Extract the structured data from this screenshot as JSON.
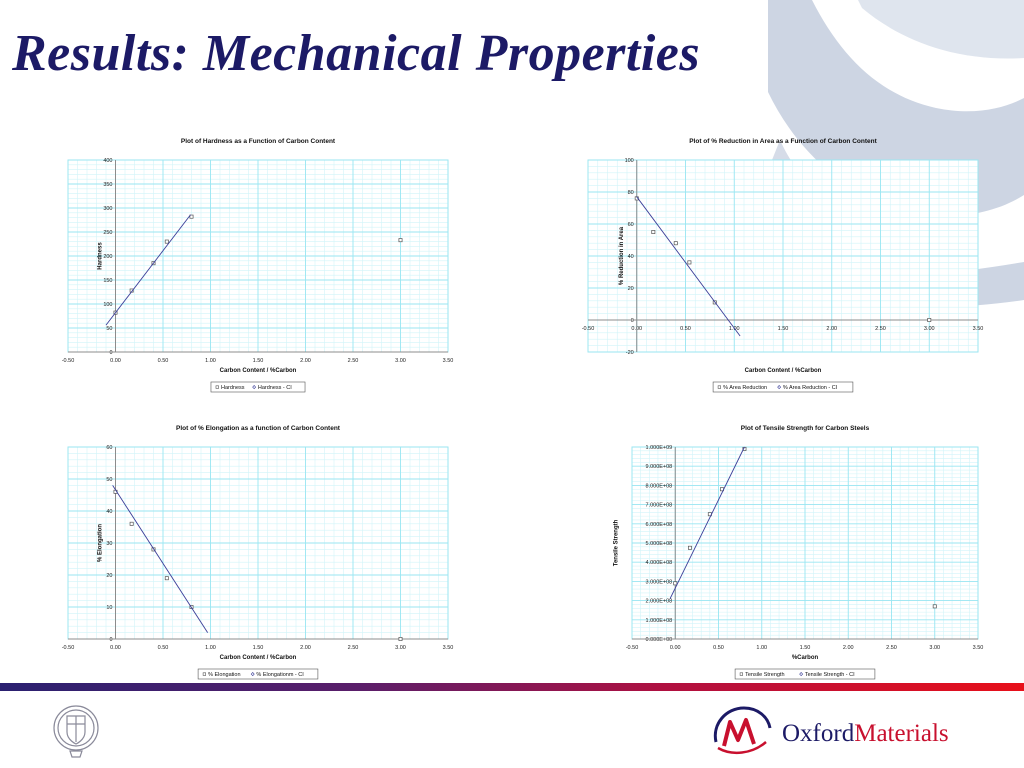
{
  "slide": {
    "title": "Results: Mechanical Properties",
    "brand": {
      "name_part1": "Oxford",
      "name_part2": "Materials"
    },
    "colors": {
      "title": "#1c1a66",
      "grid": "#9ae6f2",
      "axis": "#8c8c8c",
      "series_marker": "#555555",
      "fit_line": "#3b3f99",
      "footer_start": "#2a2070",
      "footer_end": "#e8101a",
      "watermark": "#cdd5e3"
    },
    "icons": [
      "oxford-crest-icon",
      "oxford-materials-logo-icon"
    ]
  },
  "chart_data": [
    {
      "type": "scatter",
      "title": "Plot of Hardness as a Function of Carbon Content",
      "xlabel": "Carbon Content / %Carbon",
      "ylabel": "Hardness",
      "xlim": [
        -0.5,
        3.5
      ],
      "ylim": [
        0,
        400
      ],
      "xticks": [
        "-0.50",
        "0.00",
        "0.50",
        "1.00",
        "1.50",
        "2.00",
        "2.50",
        "3.00",
        "3.50"
      ],
      "yticks": [
        "0",
        "50",
        "100",
        "150",
        "200",
        "250",
        "300",
        "350",
        "400"
      ],
      "legend": [
        "Hardness",
        "Hardness - CI"
      ],
      "legend_position": "bottom",
      "grid": true,
      "series": [
        {
          "name": "Hardness",
          "x": [
            0.0,
            0.17,
            0.4,
            0.54,
            0.8,
            3.0
          ],
          "y": [
            82,
            128,
            185,
            230,
            282,
            233
          ]
        },
        {
          "name": "Hardness - CI",
          "x": [
            -0.1,
            0.79
          ],
          "y": [
            56,
            286
          ],
          "mode": "line"
        }
      ]
    },
    {
      "type": "scatter",
      "title": "Plot of % Reduction in Area as a Function of Carbon Content",
      "xlabel": "Carbon Content / %Carbon",
      "ylabel": "% Reduction in Area",
      "xlim": [
        -0.5,
        3.5
      ],
      "ylim": [
        -20,
        100
      ],
      "xticks": [
        "-0.50",
        "0.00",
        "0.50",
        "1.00",
        "1.50",
        "2.00",
        "2.50",
        "3.00",
        "3.50"
      ],
      "yticks": [
        "-20",
        "0",
        "20",
        "40",
        "60",
        "80",
        "100"
      ],
      "legend": [
        "% Area Reduction",
        "% Area Reduction - CI"
      ],
      "legend_position": "bottom",
      "grid": true,
      "series": [
        {
          "name": "% Area Reduction",
          "x": [
            0.0,
            0.17,
            0.4,
            0.54,
            0.8,
            3.0
          ],
          "y": [
            76,
            55,
            48,
            36,
            11,
            0
          ]
        },
        {
          "name": "% Area Reduction - CI",
          "x": [
            0.0,
            1.06
          ],
          "y": [
            77,
            -10
          ],
          "mode": "line"
        }
      ]
    },
    {
      "type": "scatter",
      "title": "Plot of % Elongation as a function of Carbon Content",
      "xlabel": "Carbon Content / %Carbon",
      "ylabel": "% Elongation",
      "xlim": [
        -0.5,
        3.5
      ],
      "ylim": [
        0,
        60
      ],
      "xticks": [
        "-0.50",
        "0.00",
        "0.50",
        "1.00",
        "1.50",
        "2.00",
        "2.50",
        "3.00",
        "3.50"
      ],
      "yticks": [
        "0",
        "10",
        "20",
        "30",
        "40",
        "50",
        "60"
      ],
      "legend": [
        "% Elongation",
        "% Elongationm - CI"
      ],
      "legend_position": "bottom",
      "grid": true,
      "series": [
        {
          "name": "% Elongation",
          "x": [
            0.0,
            0.17,
            0.4,
            0.54,
            0.8,
            3.0
          ],
          "y": [
            46,
            36,
            28,
            19,
            10,
            0
          ]
        },
        {
          "name": "% Elongationm - CI",
          "x": [
            -0.03,
            0.97
          ],
          "y": [
            48,
            2
          ],
          "mode": "line"
        }
      ]
    },
    {
      "type": "scatter",
      "title": "Plot of Tensile Strength for Carbon Steels",
      "xlabel": "%Carbon",
      "ylabel": "Tensile Strength",
      "xlim": [
        -0.5,
        3.5
      ],
      "ylim": [
        0,
        1000000000
      ],
      "xticks": [
        "-0.50",
        "0.00",
        "0.50",
        "1.00",
        "1.50",
        "2.00",
        "2.50",
        "3.00",
        "3.50"
      ],
      "yticks": [
        "0.000E+00",
        "1.000E+08",
        "2.000E+08",
        "3.000E+08",
        "4.000E+08",
        "5.000E+08",
        "6.000E+08",
        "7.000E+08",
        "8.000E+08",
        "9.000E+08",
        "1.000E+09"
      ],
      "legend": [
        "Tensile Strength",
        "Tensile Strength - CI"
      ],
      "legend_position": "bottom",
      "grid": true,
      "series": [
        {
          "name": "Tensile Strength",
          "x": [
            0.0,
            0.17,
            0.4,
            0.54,
            0.8,
            3.0
          ],
          "y": [
            290000000,
            475000000,
            650000000,
            780000000,
            990000000,
            170000000
          ]
        },
        {
          "name": "Tensile Strength - CI",
          "x": [
            -0.06,
            0.8
          ],
          "y": [
            210000000,
            1000000000
          ],
          "mode": "line"
        }
      ]
    }
  ]
}
